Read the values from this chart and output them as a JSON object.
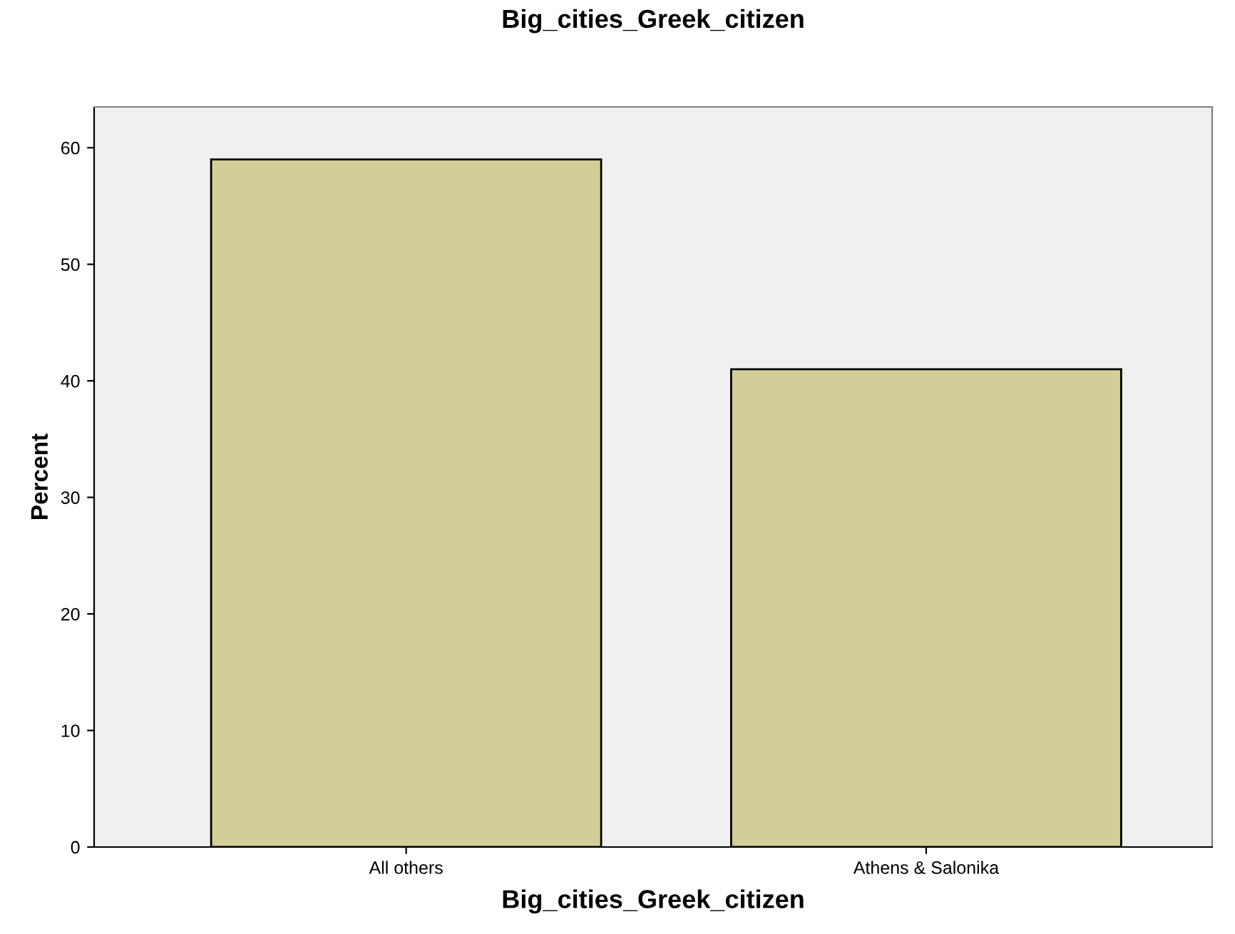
{
  "chart_data": {
    "type": "bar",
    "title": "Big_cities_Greek_citizen",
    "xlabel": "Big_cities_Greek_citizen",
    "ylabel": "Percent",
    "categories": [
      "All others",
      "Athens & Salonika"
    ],
    "values": [
      59.0,
      41.0
    ],
    "color": "#d3ce97",
    "ylim": [
      0,
      63.5
    ],
    "yticks": [
      0,
      10,
      20,
      30,
      40,
      50,
      60
    ],
    "grid": false,
    "legend": false
  }
}
